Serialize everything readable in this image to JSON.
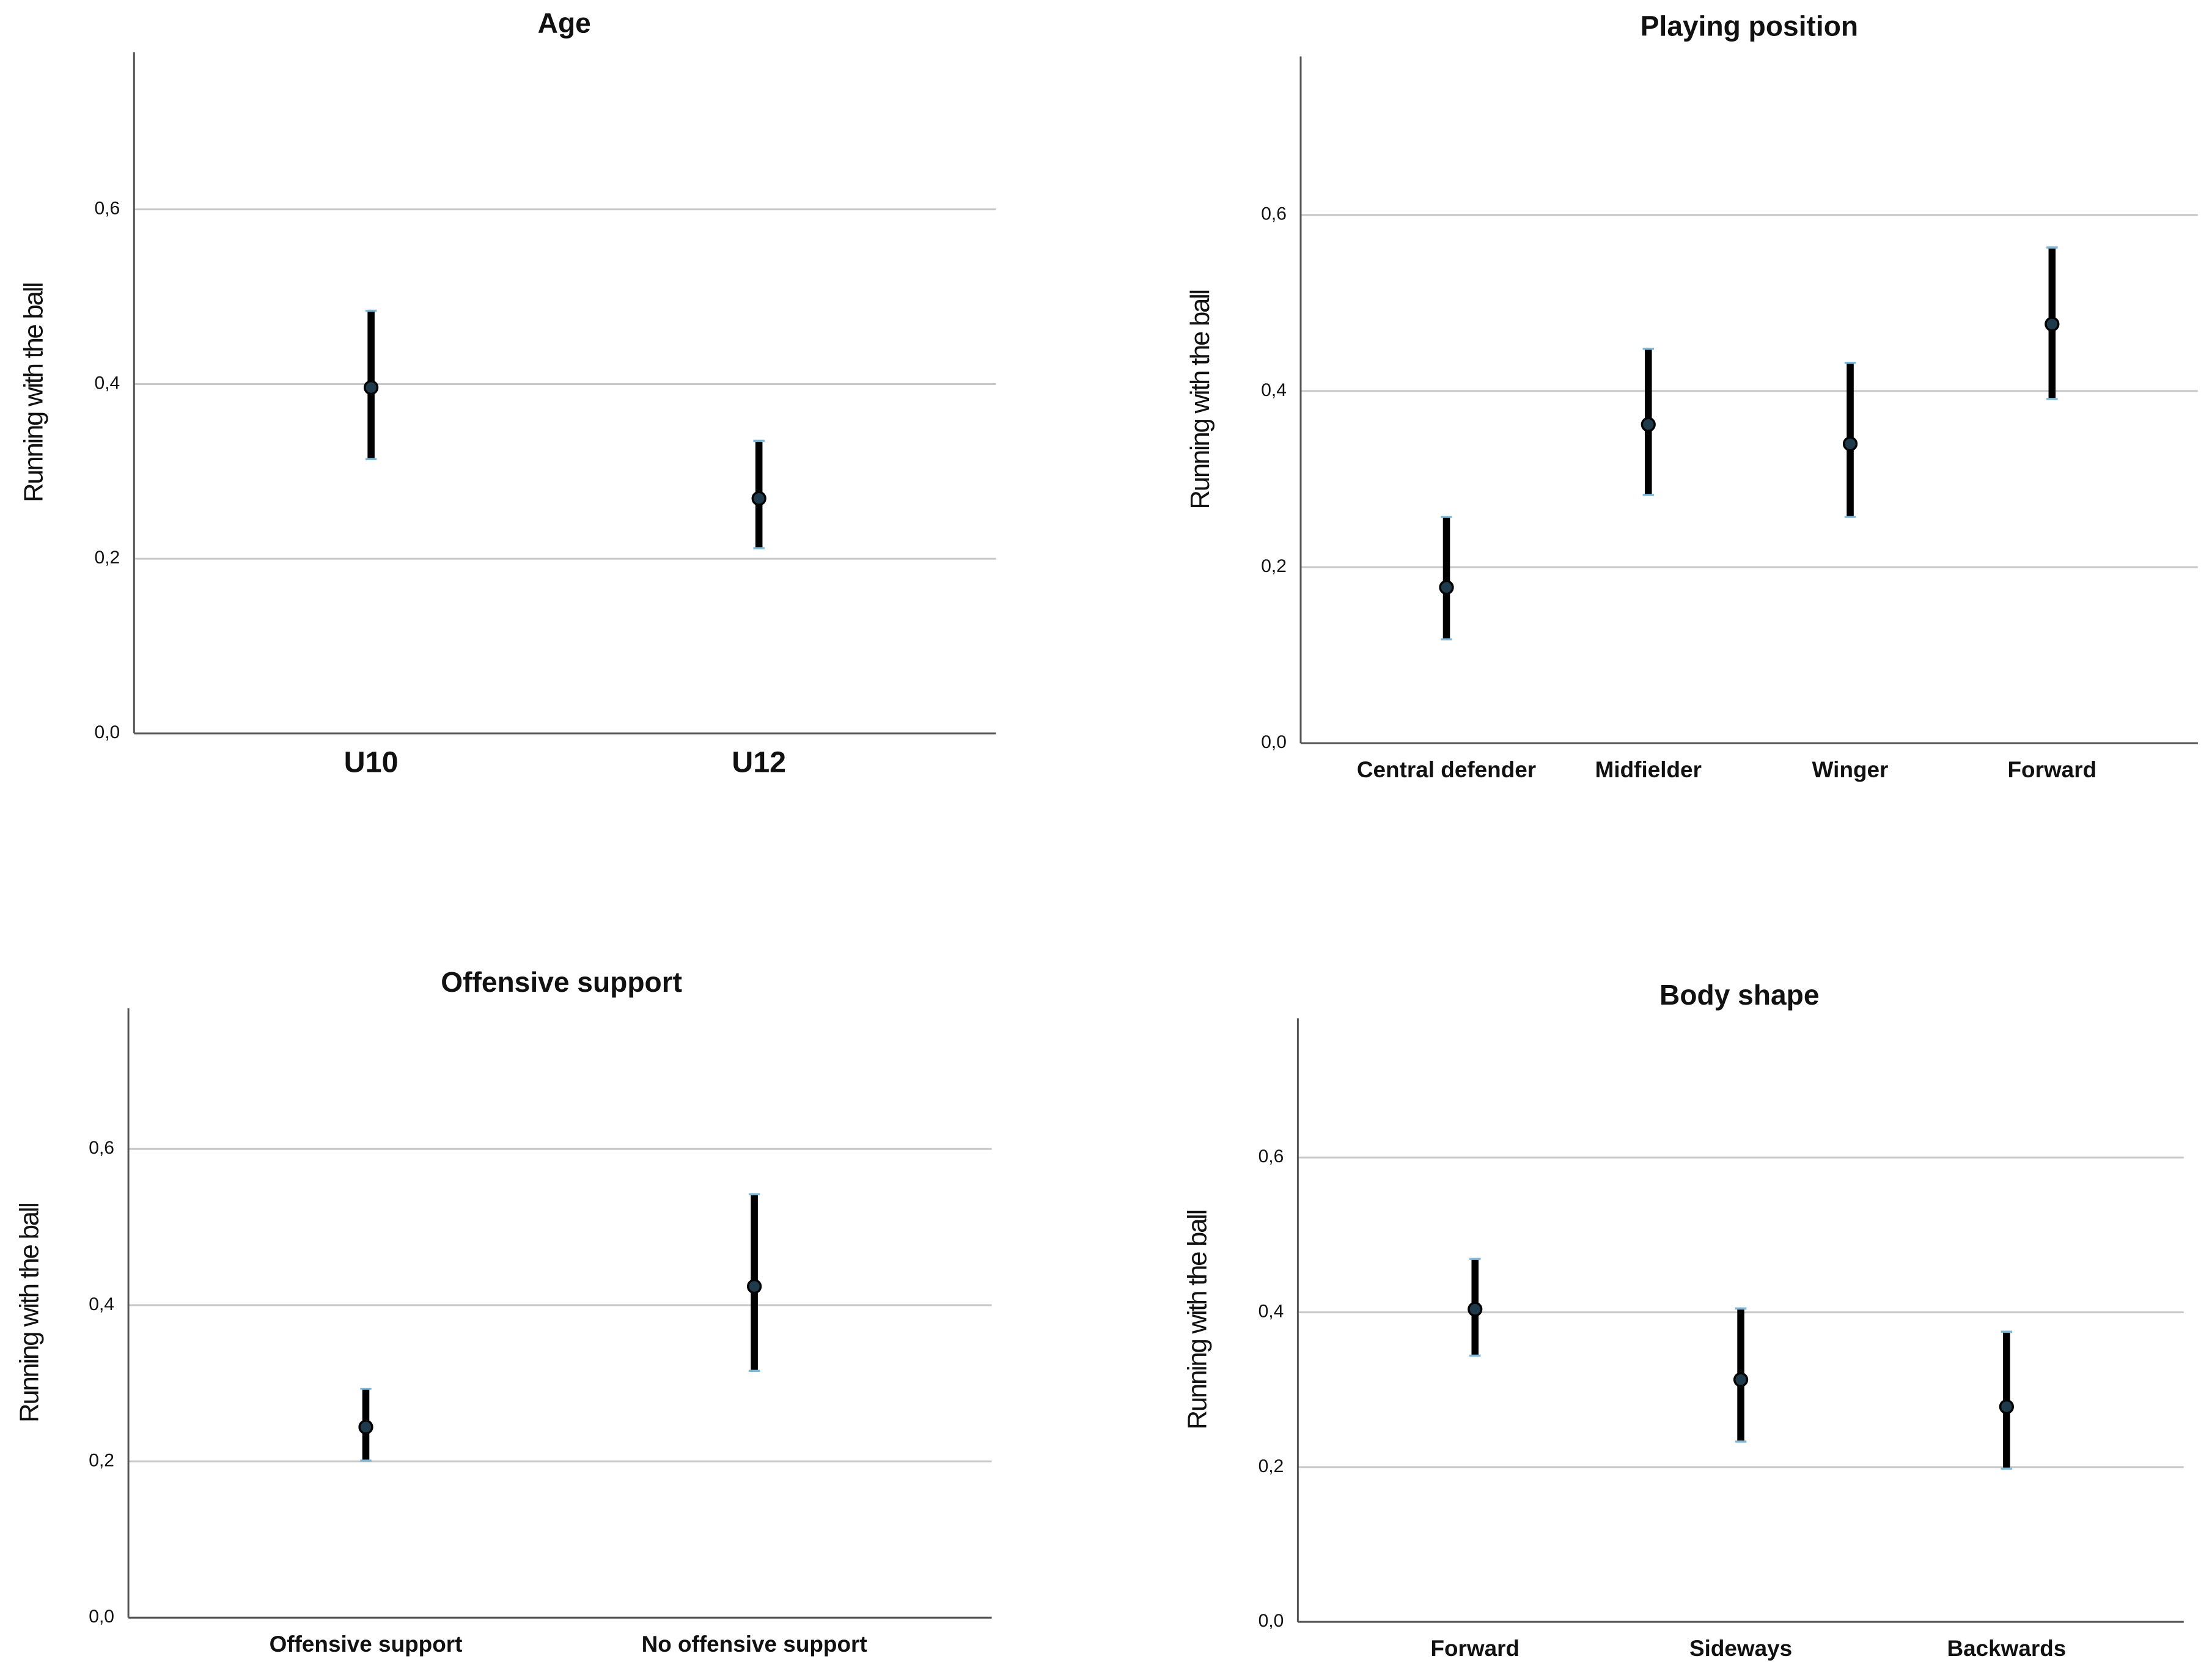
{
  "chart_data": [
    {
      "type": "errorbar",
      "title": "Age",
      "y_label": "Running with the ball",
      "categories": [
        "U10",
        "U12"
      ],
      "values": [
        0.396,
        0.269
      ],
      "lower": [
        0.314,
        0.212
      ],
      "upper": [
        0.484,
        0.335
      ],
      "color": "#000000",
      "marker_color": "#1f3a4a",
      "ylim": [
        0,
        0.78
      ],
      "yticks": [
        {
          "value": 0,
          "label": "0,0"
        },
        {
          "value": 0.2,
          "label": "0,2"
        },
        {
          "value": 0.4,
          "label": "0,4"
        },
        {
          "value": 0.6,
          "label": "0,6"
        }
      ],
      "grid": true
    },
    {
      "type": "errorbar",
      "title": "Playing position",
      "y_label": "Running with the ball",
      "categories": [
        "Central defender",
        "Midfielder",
        "Winger",
        "Forward"
      ],
      "values": [
        0.177,
        0.362,
        0.34,
        0.476
      ],
      "lower": [
        0.118,
        0.282,
        0.257,
        0.391
      ],
      "upper": [
        0.257,
        0.448,
        0.432,
        0.563
      ],
      "color": "#000000",
      "marker_color": "#1f3a4a",
      "ylim": [
        0,
        0.78
      ],
      "yticks": [
        {
          "value": 0,
          "label": "0,0"
        },
        {
          "value": 0.2,
          "label": "0,2"
        },
        {
          "value": 0.4,
          "label": "0,4"
        },
        {
          "value": 0.6,
          "label": "0,6"
        }
      ],
      "grid": true
    },
    {
      "type": "errorbar",
      "title": "Offensive support",
      "y_label": "Running with the ball",
      "categories": [
        "Offensive support",
        "No offensive support"
      ],
      "values": [
        0.244,
        0.424
      ],
      "lower": [
        0.201,
        0.316
      ],
      "upper": [
        0.293,
        0.542
      ],
      "color": "#000000",
      "marker_color": "#1f3a4a",
      "ylim": [
        0,
        0.78
      ],
      "yticks": [
        {
          "value": 0,
          "label": "0,0"
        },
        {
          "value": 0.2,
          "label": "0,2"
        },
        {
          "value": 0.4,
          "label": "0,4"
        },
        {
          "value": 0.6,
          "label": "0,6"
        }
      ],
      "grid": true
    },
    {
      "type": "errorbar",
      "title": "Body shape",
      "y_label": "Running with the ball",
      "categories": [
        "Forward",
        "Sideways",
        "Backwards"
      ],
      "values": [
        0.404,
        0.313,
        0.278
      ],
      "lower": [
        0.344,
        0.233,
        0.198
      ],
      "upper": [
        0.469,
        0.405,
        0.375
      ],
      "color": "#000000",
      "marker_color": "#1f3a4a",
      "ylim": [
        0,
        0.78
      ],
      "yticks": [
        {
          "value": 0,
          "label": "0,0"
        },
        {
          "value": 0.2,
          "label": "0,2"
        },
        {
          "value": 0.4,
          "label": "0,4"
        },
        {
          "value": 0.6,
          "label": "0,6"
        }
      ],
      "grid": true
    }
  ]
}
